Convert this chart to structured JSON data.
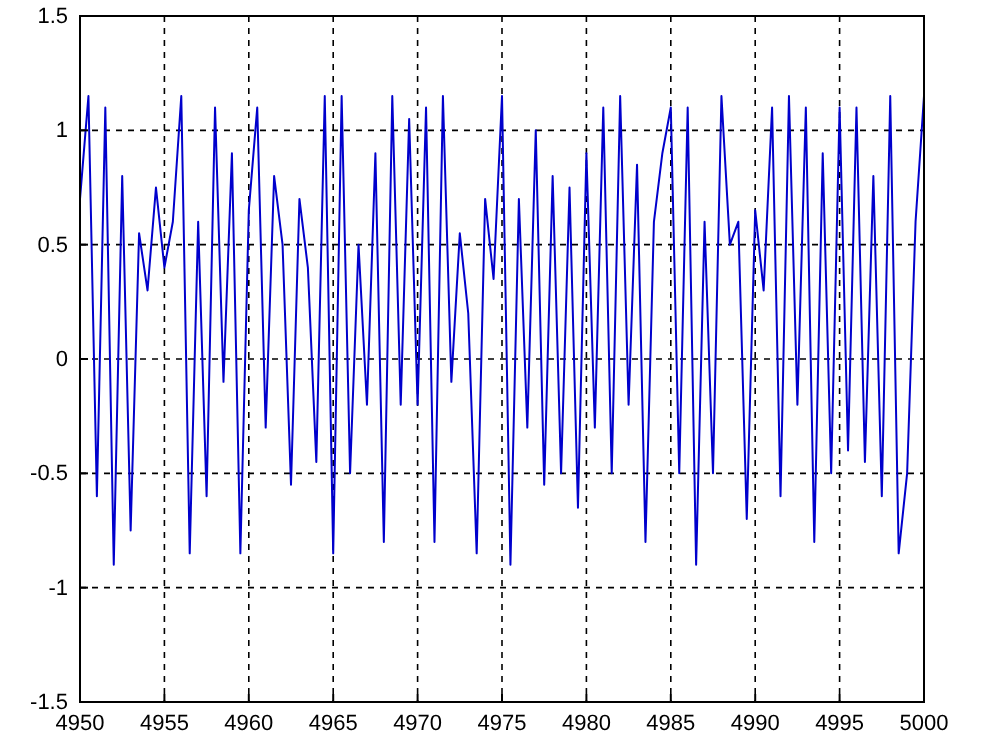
{
  "chart_data": {
    "type": "line",
    "xlim": [
      4950,
      5000
    ],
    "ylim": [
      -1.5,
      1.5
    ],
    "xticks": [
      4950,
      4955,
      4960,
      4965,
      4970,
      4975,
      4980,
      4985,
      4990,
      4995,
      5000
    ],
    "yticks": [
      -1.5,
      -1,
      -0.5,
      0,
      0.5,
      1,
      1.5
    ],
    "grid": true,
    "line_style": "solid",
    "marker": "none",
    "x": [
      4950,
      4950.5,
      4951,
      4951.5,
      4952,
      4952.5,
      4953,
      4953.5,
      4954,
      4954.5,
      4955,
      4955.5,
      4956,
      4956.5,
      4957,
      4957.5,
      4958,
      4958.5,
      4959,
      4959.5,
      4960,
      4960.5,
      4961,
      4961.5,
      4962,
      4962.5,
      4963,
      4963.5,
      4964,
      4964.5,
      4965,
      4965.5,
      4966,
      4966.5,
      4967,
      4967.5,
      4968,
      4968.5,
      4969,
      4969.5,
      4970,
      4970.5,
      4971,
      4971.5,
      4972,
      4972.5,
      4973,
      4973.5,
      4974,
      4974.5,
      4975,
      4975.5,
      4976,
      4976.5,
      4977,
      4977.5,
      4978,
      4978.5,
      4979,
      4979.5,
      4980,
      4980.5,
      4981,
      4981.5,
      4982,
      4982.5,
      4983,
      4983.5,
      4984,
      4984.5,
      4985,
      4985.5,
      4986,
      4986.5,
      4987,
      4987.5,
      4988,
      4988.5,
      4989,
      4989.5,
      4990,
      4990.5,
      4991,
      4991.5,
      4992,
      4992.5,
      4993,
      4993.5,
      4994,
      4994.5,
      4995,
      4995.5,
      4996,
      4996.5,
      4997,
      4997.5,
      4998,
      4998.5,
      4999,
      4999.5,
      5000
    ],
    "series": [
      {
        "color": "#0000cc",
        "values": [
          0.7,
          1.15,
          -0.6,
          1.1,
          -0.9,
          0.8,
          -0.75,
          0.55,
          0.3,
          0.75,
          0.4,
          0.6,
          1.15,
          -0.85,
          0.6,
          -0.6,
          1.1,
          -0.1,
          0.9,
          -0.85,
          0.65,
          1.1,
          -0.3,
          0.8,
          0.5,
          -0.55,
          0.7,
          0.4,
          -0.45,
          1.15,
          -0.85,
          1.15,
          -0.5,
          0.5,
          -0.2,
          0.9,
          -0.8,
          1.15,
          -0.2,
          1.05,
          -0.2,
          1.1,
          -0.8,
          1.15,
          -0.1,
          0.55,
          0.2,
          -0.85,
          0.7,
          0.35,
          1.15,
          -0.9,
          0.7,
          -0.3,
          1.0,
          -0.55,
          0.8,
          -0.5,
          0.75,
          -0.65,
          0.9,
          -0.3,
          1.1,
          -0.5,
          1.15,
          -0.2,
          0.85,
          -0.8,
          0.6,
          0.9,
          1.1,
          -0.5,
          1.1,
          -0.9,
          0.6,
          -0.5,
          1.15,
          0.5,
          0.6,
          -0.7,
          0.65,
          0.3,
          1.1,
          -0.6,
          1.15,
          -0.2,
          1.1,
          -0.8,
          0.9,
          -0.5,
          1.1,
          -0.4,
          1.1,
          -0.45,
          0.8,
          -0.6,
          1.15,
          -0.85,
          -0.5,
          0.6,
          1.15
        ]
      }
    ]
  }
}
